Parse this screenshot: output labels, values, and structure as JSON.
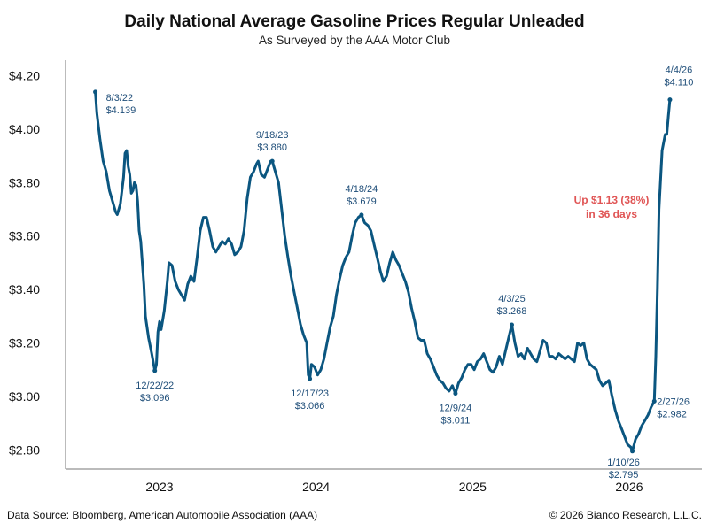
{
  "chart_data": {
    "type": "line",
    "title": "Daily National Average Gasoline Prices Regular Unleaded",
    "subtitle": "As Surveyed by the AAA Motor Club",
    "ylim": [
      2.74,
      4.25
    ],
    "xlim": [
      2022.45,
      2026.45
    ],
    "yticks": [
      {
        "value": 4.2,
        "label": "$4.20"
      },
      {
        "value": 4.0,
        "label": "$4.00"
      },
      {
        "value": 3.8,
        "label": "$3.80"
      },
      {
        "value": 3.6,
        "label": "$3.60"
      },
      {
        "value": 3.4,
        "label": "$3.40"
      },
      {
        "value": 3.2,
        "label": "$3.20"
      },
      {
        "value": 3.0,
        "label": "$3.00"
      },
      {
        "value": 2.8,
        "label": "$2.80"
      }
    ],
    "xticks": [
      {
        "value": 2023.0,
        "label": "2023"
      },
      {
        "value": 2024.0,
        "label": "2024"
      },
      {
        "value": 2025.0,
        "label": "2025"
      },
      {
        "value": 2026.0,
        "label": "2026"
      }
    ],
    "line_color": "#0b5680",
    "series": [
      {
        "name": "Regular Unleaded",
        "points": [
          [
            2022.59,
            4.139
          ],
          [
            2022.6,
            4.06
          ],
          [
            2022.62,
            3.96
          ],
          [
            2022.64,
            3.88
          ],
          [
            2022.66,
            3.84
          ],
          [
            2022.68,
            3.77
          ],
          [
            2022.7,
            3.73
          ],
          [
            2022.72,
            3.69
          ],
          [
            2022.73,
            3.68
          ],
          [
            2022.75,
            3.72
          ],
          [
            2022.77,
            3.82
          ],
          [
            2022.78,
            3.91
          ],
          [
            2022.79,
            3.92
          ],
          [
            2022.8,
            3.86
          ],
          [
            2022.81,
            3.83
          ],
          [
            2022.82,
            3.76
          ],
          [
            2022.83,
            3.77
          ],
          [
            2022.84,
            3.8
          ],
          [
            2022.85,
            3.79
          ],
          [
            2022.86,
            3.73
          ],
          [
            2022.87,
            3.62
          ],
          [
            2022.88,
            3.58
          ],
          [
            2022.9,
            3.42
          ],
          [
            2022.91,
            3.3
          ],
          [
            2022.93,
            3.22
          ],
          [
            2022.95,
            3.16
          ],
          [
            2022.97,
            3.096
          ],
          [
            2022.98,
            3.12
          ],
          [
            2022.99,
            3.24
          ],
          [
            2023.0,
            3.28
          ],
          [
            2023.01,
            3.25
          ],
          [
            2023.03,
            3.32
          ],
          [
            2023.05,
            3.43
          ],
          [
            2023.06,
            3.5
          ],
          [
            2023.08,
            3.49
          ],
          [
            2023.1,
            3.43
          ],
          [
            2023.12,
            3.4
          ],
          [
            2023.14,
            3.38
          ],
          [
            2023.16,
            3.36
          ],
          [
            2023.18,
            3.42
          ],
          [
            2023.2,
            3.45
          ],
          [
            2023.22,
            3.43
          ],
          [
            2023.24,
            3.52
          ],
          [
            2023.26,
            3.62
          ],
          [
            2023.28,
            3.67
          ],
          [
            2023.3,
            3.67
          ],
          [
            2023.32,
            3.62
          ],
          [
            2023.34,
            3.56
          ],
          [
            2023.36,
            3.54
          ],
          [
            2023.38,
            3.56
          ],
          [
            2023.4,
            3.58
          ],
          [
            2023.42,
            3.57
          ],
          [
            2023.44,
            3.59
          ],
          [
            2023.46,
            3.57
          ],
          [
            2023.48,
            3.53
          ],
          [
            2023.5,
            3.54
          ],
          [
            2023.52,
            3.56
          ],
          [
            2023.54,
            3.62
          ],
          [
            2023.56,
            3.74
          ],
          [
            2023.58,
            3.82
          ],
          [
            2023.6,
            3.84
          ],
          [
            2023.62,
            3.87
          ],
          [
            2023.63,
            3.88
          ],
          [
            2023.65,
            3.83
          ],
          [
            2023.67,
            3.82
          ],
          [
            2023.69,
            3.85
          ],
          [
            2023.71,
            3.88
          ],
          [
            2023.72,
            3.88
          ],
          [
            2023.74,
            3.84
          ],
          [
            2023.76,
            3.8
          ],
          [
            2023.78,
            3.7
          ],
          [
            2023.8,
            3.6
          ],
          [
            2023.82,
            3.52
          ],
          [
            2023.84,
            3.45
          ],
          [
            2023.86,
            3.39
          ],
          [
            2023.88,
            3.33
          ],
          [
            2023.9,
            3.27
          ],
          [
            2023.92,
            3.23
          ],
          [
            2023.94,
            3.2
          ],
          [
            2023.95,
            3.08
          ],
          [
            2023.96,
            3.066
          ],
          [
            2023.97,
            3.12
          ],
          [
            2023.99,
            3.11
          ],
          [
            2024.01,
            3.08
          ],
          [
            2024.03,
            3.1
          ],
          [
            2024.05,
            3.14
          ],
          [
            2024.07,
            3.2
          ],
          [
            2024.09,
            3.26
          ],
          [
            2024.11,
            3.3
          ],
          [
            2024.13,
            3.38
          ],
          [
            2024.15,
            3.44
          ],
          [
            2024.17,
            3.49
          ],
          [
            2024.19,
            3.52
          ],
          [
            2024.21,
            3.54
          ],
          [
            2024.23,
            3.6
          ],
          [
            2024.25,
            3.65
          ],
          [
            2024.27,
            3.67
          ],
          [
            2024.29,
            3.679
          ],
          [
            2024.31,
            3.65
          ],
          [
            2024.33,
            3.64
          ],
          [
            2024.35,
            3.62
          ],
          [
            2024.37,
            3.57
          ],
          [
            2024.39,
            3.52
          ],
          [
            2024.41,
            3.47
          ],
          [
            2024.43,
            3.43
          ],
          [
            2024.45,
            3.45
          ],
          [
            2024.47,
            3.5
          ],
          [
            2024.49,
            3.54
          ],
          [
            2024.51,
            3.51
          ],
          [
            2024.53,
            3.49
          ],
          [
            2024.55,
            3.46
          ],
          [
            2024.57,
            3.43
          ],
          [
            2024.59,
            3.39
          ],
          [
            2024.61,
            3.33
          ],
          [
            2024.63,
            3.28
          ],
          [
            2024.65,
            3.22
          ],
          [
            2024.67,
            3.21
          ],
          [
            2024.69,
            3.21
          ],
          [
            2024.71,
            3.16
          ],
          [
            2024.73,
            3.14
          ],
          [
            2024.75,
            3.11
          ],
          [
            2024.77,
            3.08
          ],
          [
            2024.79,
            3.06
          ],
          [
            2024.81,
            3.05
          ],
          [
            2024.83,
            3.03
          ],
          [
            2024.85,
            3.02
          ],
          [
            2024.87,
            3.04
          ],
          [
            2024.89,
            3.011
          ],
          [
            2024.91,
            3.05
          ],
          [
            2024.93,
            3.07
          ],
          [
            2024.95,
            3.1
          ],
          [
            2024.97,
            3.12
          ],
          [
            2024.99,
            3.12
          ],
          [
            2025.01,
            3.1
          ],
          [
            2025.03,
            3.13
          ],
          [
            2025.05,
            3.14
          ],
          [
            2025.07,
            3.16
          ],
          [
            2025.09,
            3.13
          ],
          [
            2025.11,
            3.1
          ],
          [
            2025.13,
            3.09
          ],
          [
            2025.15,
            3.11
          ],
          [
            2025.17,
            3.15
          ],
          [
            2025.19,
            3.12
          ],
          [
            2025.21,
            3.17
          ],
          [
            2025.23,
            3.22
          ],
          [
            2025.25,
            3.268
          ],
          [
            2025.27,
            3.2
          ],
          [
            2025.29,
            3.15
          ],
          [
            2025.31,
            3.16
          ],
          [
            2025.33,
            3.14
          ],
          [
            2025.35,
            3.18
          ],
          [
            2025.37,
            3.16
          ],
          [
            2025.39,
            3.14
          ],
          [
            2025.41,
            3.13
          ],
          [
            2025.43,
            3.17
          ],
          [
            2025.45,
            3.21
          ],
          [
            2025.47,
            3.2
          ],
          [
            2025.49,
            3.15
          ],
          [
            2025.51,
            3.15
          ],
          [
            2025.53,
            3.14
          ],
          [
            2025.55,
            3.16
          ],
          [
            2025.57,
            3.15
          ],
          [
            2025.59,
            3.14
          ],
          [
            2025.61,
            3.15
          ],
          [
            2025.63,
            3.14
          ],
          [
            2025.65,
            3.13
          ],
          [
            2025.67,
            3.2
          ],
          [
            2025.69,
            3.19
          ],
          [
            2025.71,
            3.2
          ],
          [
            2025.73,
            3.14
          ],
          [
            2025.75,
            3.12
          ],
          [
            2025.77,
            3.11
          ],
          [
            2025.79,
            3.1
          ],
          [
            2025.81,
            3.06
          ],
          [
            2025.83,
            3.04
          ],
          [
            2025.85,
            3.05
          ],
          [
            2025.87,
            3.06
          ],
          [
            2025.89,
            3.0
          ],
          [
            2025.91,
            2.95
          ],
          [
            2025.93,
            2.91
          ],
          [
            2025.95,
            2.88
          ],
          [
            2025.97,
            2.85
          ],
          [
            2025.99,
            2.82
          ],
          [
            2026.01,
            2.81
          ],
          [
            2026.02,
            2.795
          ],
          [
            2026.04,
            2.84
          ],
          [
            2026.06,
            2.86
          ],
          [
            2026.08,
            2.89
          ],
          [
            2026.1,
            2.91
          ],
          [
            2026.12,
            2.93
          ],
          [
            2026.14,
            2.96
          ],
          [
            2026.16,
            2.982
          ],
          [
            2026.17,
            3.15
          ],
          [
            2026.18,
            3.4
          ],
          [
            2026.19,
            3.7
          ],
          [
            2026.21,
            3.92
          ],
          [
            2026.23,
            3.98
          ],
          [
            2026.24,
            3.98
          ],
          [
            2026.25,
            4.05
          ],
          [
            2026.26,
            4.11
          ]
        ]
      }
    ],
    "annotations": [
      {
        "x": 2022.59,
        "y": 4.139,
        "date": "8/3/22",
        "value": "$4.139",
        "pos": "right-below"
      },
      {
        "x": 2022.97,
        "y": 3.096,
        "date": "12/22/22",
        "value": "$3.096",
        "pos": "below"
      },
      {
        "x": 2023.72,
        "y": 3.88,
        "date": "9/18/23",
        "value": "$3.880",
        "pos": "above"
      },
      {
        "x": 2023.96,
        "y": 3.066,
        "date": "12/17/23",
        "value": "$3.066",
        "pos": "below"
      },
      {
        "x": 2024.29,
        "y": 3.679,
        "date": "4/18/24",
        "value": "$3.679",
        "pos": "above"
      },
      {
        "x": 2024.89,
        "y": 3.011,
        "date": "12/9/24",
        "value": "$3.011",
        "pos": "below"
      },
      {
        "x": 2025.25,
        "y": 3.268,
        "date": "4/3/25",
        "value": "$3.268",
        "pos": "above"
      },
      {
        "x": 2026.02,
        "y": 2.795,
        "date": "1/10/26",
        "value": "$2.795",
        "pos": "below-left"
      },
      {
        "x": 2026.16,
        "y": 2.982,
        "date": "2/27/26",
        "value": "$2.982",
        "pos": "right"
      },
      {
        "x": 2026.26,
        "y": 4.11,
        "date": "4/4/26",
        "value": "$4.110",
        "pos": "above-right"
      }
    ],
    "callout": {
      "line1": "Up $1.13 (38%)",
      "line2": "in 36 days",
      "color": "#e05555"
    }
  },
  "footer": {
    "source": "Data Source: Bloomberg, American Automobile Association (AAA)",
    "copyright": "© 2026 Bianco Research, L.L.C."
  }
}
